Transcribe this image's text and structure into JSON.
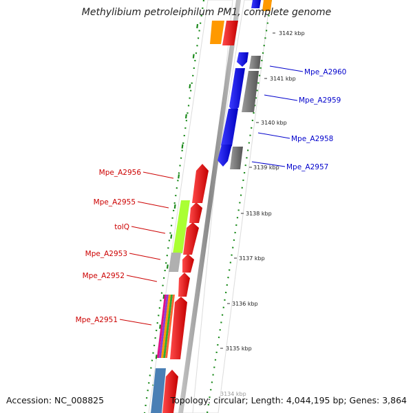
{
  "title": "Methylibium petroleiphilum PM1, complete genome",
  "footer": {
    "accession": "Accession: NC_008825",
    "summary": "Topology: circular; Length: 4,044,195 bp; Genes: 3,864"
  },
  "ticks": [
    "3142 kbp",
    "3141 kbp",
    "3140 kbp",
    "3139 kbp",
    "3138 kbp",
    "3137 kbp",
    "3136 kbp",
    "3135 kbp",
    "3134 kbp"
  ],
  "genes": {
    "forward": [
      "Mpe_A2960",
      "Mpe_A2959",
      "Mpe_A2958",
      "Mpe_A2957"
    ],
    "reverse": [
      "Mpe_A2956",
      "Mpe_A2955",
      "tolQ",
      "Mpe_A2953",
      "Mpe_A2952",
      "Mpe_A2951"
    ]
  },
  "colors": {
    "forward_label": "#0000cc",
    "reverse_label": "#cc0000",
    "cds_blue": "#0000ee",
    "cds_red": "#ee0000",
    "cds_gray": "#777777",
    "cds_orange": "#ff9900",
    "cds_lime": "#aaff33",
    "cds_steel": "#4a7fb5",
    "backbone": "#999999",
    "gc_dots": "#1a8a1a"
  }
}
